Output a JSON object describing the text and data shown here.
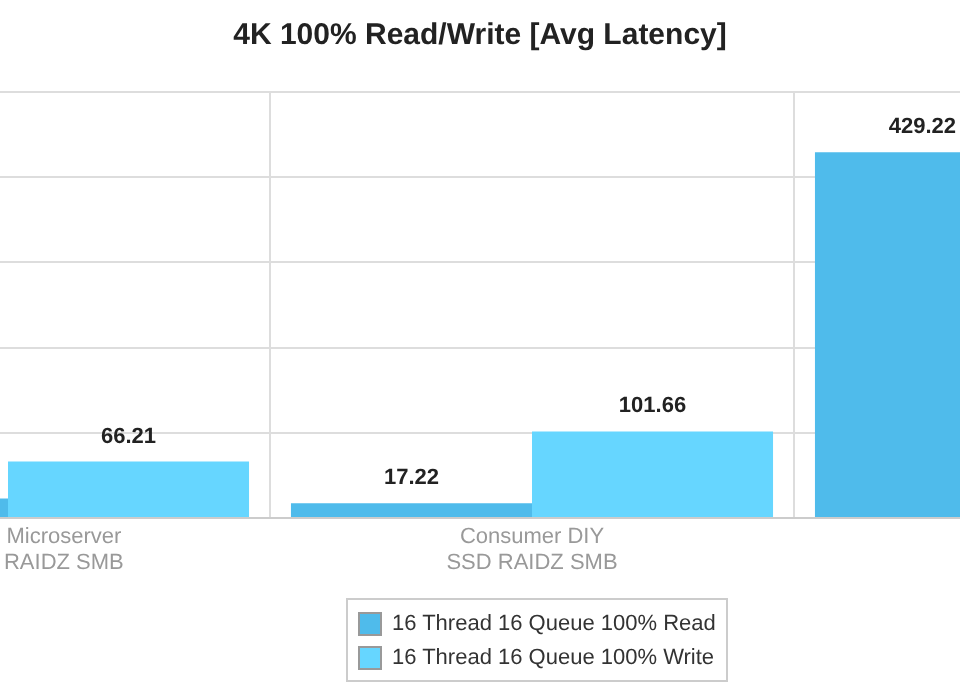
{
  "chart_data": {
    "type": "bar",
    "title": "4K 100% Read/Write [Avg Latency]",
    "categories": [
      "Microserver\nRAIDZ SMB",
      "Consumer DIY\nSSD RAIDZ SMB",
      null
    ],
    "series": [
      {
        "name": "16 Thread 16 Queue 100% Read",
        "color": "#4fbbeb",
        "values": [
          23,
          17.22,
          429.22
        ],
        "value_labels": [
          null,
          "17.22",
          "429.22"
        ]
      },
      {
        "name": "16 Thread 16 Queue 100% Write",
        "color": "#66d6ff",
        "values": [
          66.21,
          101.66,
          null
        ],
        "value_labels": [
          "66.21",
          "101.66",
          null
        ]
      }
    ],
    "ylim": [
      0,
      500
    ],
    "yticks": [
      {
        "value": 0,
        "label": null
      },
      {
        "value": 100,
        "label": null
      },
      {
        "value": 200,
        "label": null
      },
      {
        "value": 300,
        "label": null
      },
      {
        "value": 400,
        "label": null
      },
      {
        "value": 500,
        "label": null
      }
    ],
    "tick_labels": "x",
    "grid": true,
    "legend": "bottom"
  }
}
